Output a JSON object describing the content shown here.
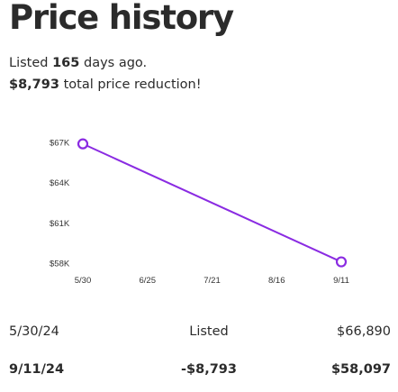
{
  "page_title": "Price history",
  "summary": {
    "listed_prefix": "Listed ",
    "listed_days": "165",
    "listed_suffix": " days ago.",
    "reduction_amount": "$8,793",
    "reduction_suffix": " total price reduction!"
  },
  "chart_data": {
    "type": "line",
    "x": [
      "5/30",
      "9/11"
    ],
    "values": [
      66890,
      58097
    ],
    "x_ticks": [
      "5/30",
      "6/25",
      "7/21",
      "8/16",
      "9/11"
    ],
    "y_ticks": [
      "$67K",
      "$64K",
      "$61K",
      "$58K"
    ],
    "y_tick_values": [
      67000,
      64000,
      61000,
      58000
    ],
    "ylim": [
      58000,
      67000
    ],
    "xlim_days": [
      0,
      104
    ],
    "x_tick_days": [
      0,
      26,
      52,
      78,
      104
    ],
    "line_color": "#8a2be2",
    "grid": false
  },
  "history": [
    {
      "date": "5/30/24",
      "event": "Listed",
      "price": "$66,890"
    },
    {
      "date": "9/11/24",
      "event": "-$8,793",
      "price": "$58,097"
    }
  ]
}
